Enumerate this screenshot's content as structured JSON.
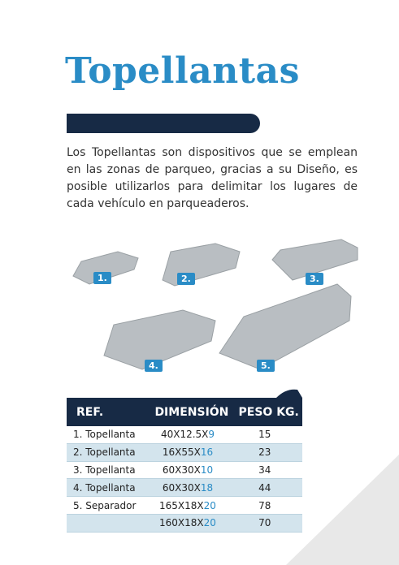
{
  "header": {
    "title": "Topellantas"
  },
  "description": "Los Topellantas son dispositivos que se emplean en las zonas de parqueo, gracias a su Diseño, es posible utilizarlos para delimitar los lugares de cada vehículo en parqueaderos.",
  "products": [
    {
      "label": "1."
    },
    {
      "label": "2."
    },
    {
      "label": "3."
    },
    {
      "label": "4."
    },
    {
      "label": "5."
    }
  ],
  "table": {
    "columns": [
      "REF.",
      "DIMENSIÓN",
      "PESO KG."
    ],
    "rows": [
      {
        "ref": "1. Topellanta",
        "dimension": {
          "base": "40X12.5X",
          "accent": "9"
        },
        "weight": 15
      },
      {
        "ref": "2. Topellanta",
        "dimension": {
          "base": "16X55X",
          "accent": "16"
        },
        "weight": 23
      },
      {
        "ref": "3. Topellanta",
        "dimension": {
          "base": "60X30X",
          "accent": "10"
        },
        "weight": 34
      },
      {
        "ref": "4. Topellanta",
        "dimension": {
          "base": "60X30X",
          "accent": "18"
        },
        "weight": 44
      },
      {
        "ref": "5. Separador",
        "dimension": {
          "base": "165X18X",
          "accent": "20"
        },
        "weight": 78
      },
      {
        "dimension": {
          "base": "160X18X",
          "accent": "20"
        },
        "weight": 70
      }
    ]
  }
}
